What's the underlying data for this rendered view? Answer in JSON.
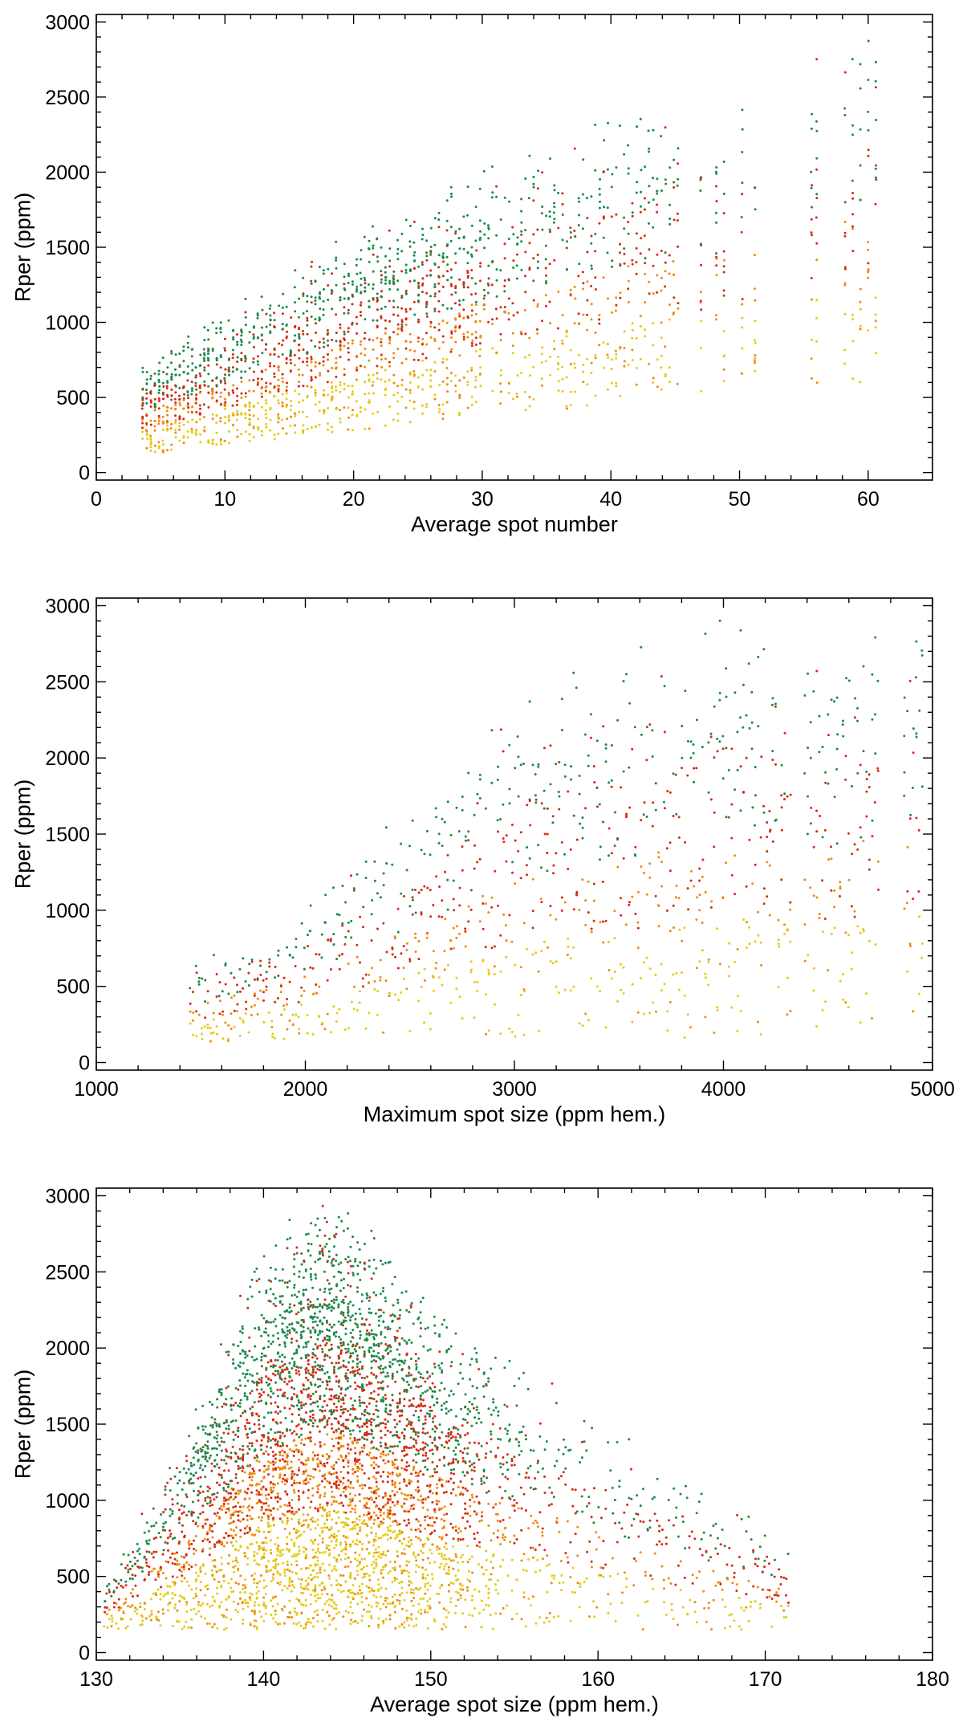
{
  "colors": {
    "green": "#1a8a4a",
    "red": "#d62a10",
    "orange": "#ee8c10",
    "yellow": "#e4cc18"
  },
  "chart_data": [
    {
      "type": "scatter",
      "xlabel": "Average spot number",
      "ylabel": "Rper (ppm)",
      "xlim": [
        0,
        65
      ],
      "ylim": [
        -50,
        3050
      ],
      "xticks": [
        0,
        10,
        20,
        30,
        40,
        50,
        60
      ],
      "yticks": [
        0,
        500,
        1000,
        1500,
        2000,
        2500,
        3000
      ],
      "series": [
        {
          "name": "Rper vs average spot number",
          "color": "multi (green-red-orange-yellow gradient)",
          "envelope": [
            {
              "x": 4,
              "low": 120,
              "high": 700
            },
            {
              "x": 10,
              "low": 180,
              "high": 1000
            },
            {
              "x": 20,
              "low": 280,
              "high": 1500
            },
            {
              "x": 30,
              "low": 380,
              "high": 1900
            },
            {
              "x": 40,
              "low": 430,
              "high": 2300
            },
            {
              "x": 50,
              "low": 520,
              "high": 2400
            },
            {
              "x": 60,
              "low": 580,
              "high": 2850
            }
          ]
        }
      ]
    },
    {
      "type": "scatter",
      "xlabel": "Maximum spot size (ppm hem.)",
      "ylabel": "Rper (ppm)",
      "xlim": [
        1000,
        5000
      ],
      "ylim": [
        -50,
        3050
      ],
      "xticks": [
        1000,
        2000,
        3000,
        4000,
        5000
      ],
      "yticks": [
        0,
        500,
        1000,
        1500,
        2000,
        2500,
        3000
      ],
      "series": [
        {
          "name": "Rper vs maximum spot size",
          "color": "multi (green-red-orange-yellow gradient)",
          "envelope": [
            {
              "x": 1450,
              "low": 130,
              "high": 600
            },
            {
              "x": 2000,
              "low": 130,
              "high": 1000
            },
            {
              "x": 2500,
              "low": 150,
              "high": 1600
            },
            {
              "x": 3000,
              "low": 150,
              "high": 2300
            },
            {
              "x": 3500,
              "low": 150,
              "high": 2500
            },
            {
              "x": 4000,
              "low": 150,
              "high": 2800
            },
            {
              "x": 4500,
              "low": 200,
              "high": 2600
            },
            {
              "x": 4950,
              "low": 200,
              "high": 2900
            }
          ]
        }
      ]
    },
    {
      "type": "scatter",
      "xlabel": "Average spot size (ppm hem.)",
      "ylabel": "Rper (ppm)",
      "xlim": [
        130,
        180
      ],
      "ylim": [
        -50,
        3050
      ],
      "xticks": [
        130,
        140,
        150,
        160,
        170,
        180
      ],
      "yticks": [
        0,
        500,
        1000,
        1500,
        2000,
        2500,
        3000
      ],
      "series": [
        {
          "name": "Rper vs average spot size",
          "color": "multi (green-red-orange-yellow gradient)",
          "envelope": [
            {
              "x": 131,
              "low": 150,
              "high": 500
            },
            {
              "x": 136,
              "low": 150,
              "high": 1500
            },
            {
              "x": 140,
              "low": 150,
              "high": 2500
            },
            {
              "x": 144,
              "low": 150,
              "high": 2800
            },
            {
              "x": 148,
              "low": 150,
              "high": 2400
            },
            {
              "x": 152,
              "low": 150,
              "high": 2000
            },
            {
              "x": 158,
              "low": 150,
              "high": 1600
            },
            {
              "x": 165,
              "low": 150,
              "high": 1100
            },
            {
              "x": 171,
              "low": 150,
              "high": 700
            }
          ]
        }
      ]
    }
  ]
}
